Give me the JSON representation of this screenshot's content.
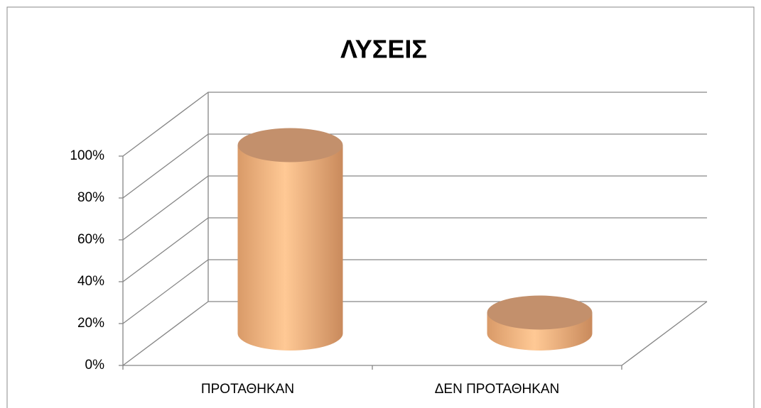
{
  "chart_data": {
    "type": "bar3d",
    "title": "ΛΥΣΕΙΣ",
    "categories": [
      "ΠΡΟΤΑΘΗΚΑΝ",
      "ΔΕΝ ΠΡΟΤΑΘΗΚΑΝ"
    ],
    "values": [
      90,
      10
    ],
    "color": "#f7b27a",
    "ylim": [
      0,
      100
    ],
    "yticks": [
      {
        "value": 0,
        "label": "0%"
      },
      {
        "value": 20,
        "label": "20%"
      },
      {
        "value": 40,
        "label": "40%"
      },
      {
        "value": 60,
        "label": "60%"
      },
      {
        "value": 80,
        "label": "80%"
      },
      {
        "value": 100,
        "label": "100%"
      }
    ],
    "grid": true
  }
}
